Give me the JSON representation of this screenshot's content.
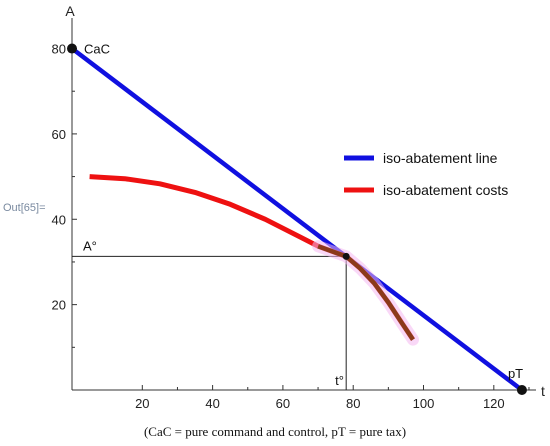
{
  "output_label": "Out[65]=",
  "caption": "(CaC = pure command and control, pT = pure tax)",
  "chart_data": {
    "type": "line",
    "xlabel": "t",
    "ylabel": "A",
    "xlim": [
      0,
      132
    ],
    "ylim": [
      0,
      82
    ],
    "x_ticks": [
      20,
      40,
      60,
      80,
      100,
      120
    ],
    "y_ticks": [
      20,
      40,
      60,
      80
    ],
    "legend": {
      "placement": "right"
    },
    "series": [
      {
        "name": "iso-abatement line",
        "color": "#1010e0",
        "x": [
          0,
          128
        ],
        "y": [
          80,
          0
        ]
      },
      {
        "name": "iso-abatement costs",
        "color": "#ee1111",
        "color_highlight": "#8b3a1a",
        "x": [
          5,
          15,
          25,
          35,
          45,
          55,
          65,
          70,
          75,
          78,
          82,
          86,
          90,
          94,
          97
        ],
        "y": [
          50,
          49.5,
          48.3,
          46.3,
          43.5,
          40,
          35.8,
          33.7,
          32.2,
          31.3,
          28.5,
          25,
          20.5,
          15.5,
          11.8
        ],
        "highlight_from_x": 68
      }
    ],
    "points": [
      {
        "label": "CaC",
        "x": 0,
        "y": 80
      },
      {
        "label": "",
        "x": 78,
        "y": 31.3
      },
      {
        "label": "pT",
        "x": 128,
        "y": 0
      }
    ],
    "reference_point": {
      "x": 78,
      "y": 31.3,
      "x_label": "t°",
      "y_label": "A°"
    }
  }
}
